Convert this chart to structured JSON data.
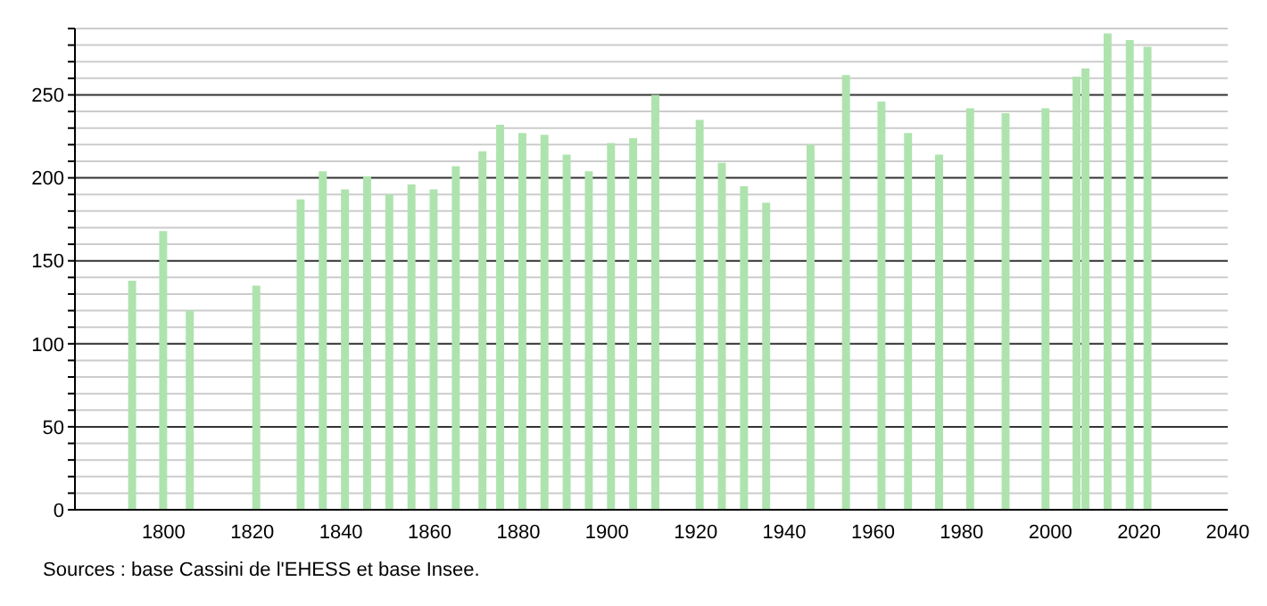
{
  "chart_data": {
    "type": "bar",
    "x": [
      1793,
      1800,
      1806,
      1821,
      1831,
      1836,
      1841,
      1846,
      1851,
      1856,
      1861,
      1866,
      1872,
      1876,
      1881,
      1886,
      1891,
      1896,
      1901,
      1906,
      1911,
      1921,
      1926,
      1931,
      1936,
      1946,
      1954,
      1962,
      1968,
      1975,
      1982,
      1990,
      1999,
      2006,
      2008,
      2013,
      2018,
      2022
    ],
    "values": [
      138,
      168,
      120,
      135,
      187,
      204,
      193,
      201,
      190,
      196,
      193,
      207,
      216,
      232,
      227,
      226,
      214,
      204,
      221,
      224,
      250,
      235,
      209,
      195,
      185,
      220,
      262,
      246,
      227,
      214,
      242,
      239,
      242,
      261,
      266,
      287,
      283,
      279
    ],
    "color": "#aee3ae",
    "xlim": [
      1780,
      2040
    ],
    "xticks": [
      1800,
      1820,
      1840,
      1860,
      1880,
      1900,
      1920,
      1940,
      1960,
      1980,
      2000,
      2020,
      2040
    ],
    "ylim": [
      0,
      290
    ],
    "yticks": [
      0,
      {
        "value": 10,
        "label": null
      },
      {
        "value": 20,
        "label": null
      },
      {
        "value": 30,
        "label": null
      },
      {
        "value": 40,
        "label": null
      },
      50,
      {
        "value": 60,
        "label": null
      },
      {
        "value": 70,
        "label": null
      },
      {
        "value": 80,
        "label": null
      },
      {
        "value": 90,
        "label": null
      },
      100,
      {
        "value": 110,
        "label": null
      },
      {
        "value": 120,
        "label": null
      },
      {
        "value": 130,
        "label": null
      },
      {
        "value": 140,
        "label": null
      },
      150,
      {
        "value": 160,
        "label": null
      },
      {
        "value": 170,
        "label": null
      },
      {
        "value": 180,
        "label": null
      },
      {
        "value": 190,
        "label": null
      },
      200,
      {
        "value": 210,
        "label": null
      },
      {
        "value": 220,
        "label": null
      },
      {
        "value": 230,
        "label": null
      },
      {
        "value": 240,
        "label": null
      },
      250,
      {
        "value": 260,
        "label": null
      },
      {
        "value": 270,
        "label": null
      },
      {
        "value": 280,
        "label": null
      },
      {
        "value": 290,
        "label": null
      }
    ],
    "grid": "y",
    "annotations": [
      "Sources : base Cassini de l'EHESS et base Insee."
    ]
  }
}
